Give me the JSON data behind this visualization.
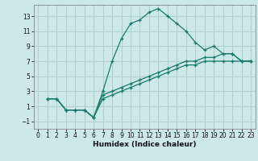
{
  "xlabel": "Humidex (Indice chaleur)",
  "bg_color": "#cce8e8",
  "grid_color": "#b0d0d0",
  "line_color": "#1a7a6e",
  "xlim": [
    -0.5,
    23.5
  ],
  "ylim": [
    -2.0,
    14.5
  ],
  "xticks": [
    0,
    1,
    2,
    3,
    4,
    5,
    6,
    7,
    8,
    9,
    10,
    11,
    12,
    13,
    14,
    15,
    16,
    17,
    18,
    19,
    20,
    21,
    22,
    23
  ],
  "yticks": [
    -1,
    1,
    3,
    5,
    7,
    9,
    11,
    13
  ],
  "series": [
    {
      "x": [
        1,
        2,
        3,
        4,
        5,
        6,
        7,
        8,
        9,
        10,
        11,
        12,
        13,
        14,
        15,
        16,
        17,
        18,
        19,
        20,
        21,
        22,
        23
      ],
      "y": [
        2,
        2,
        0.5,
        0.5,
        0.5,
        -0.5,
        3,
        7,
        10,
        12,
        12.5,
        13.5,
        14,
        13,
        12,
        11,
        9.5,
        8.5,
        9,
        8,
        8,
        7,
        7
      ]
    },
    {
      "x": [
        1,
        2,
        3,
        4,
        5,
        6,
        7,
        8,
        9,
        10,
        11,
        12,
        13,
        14,
        15,
        16,
        17,
        18,
        19,
        20,
        21,
        22,
        23
      ],
      "y": [
        2,
        2,
        0.5,
        0.5,
        0.5,
        -0.5,
        2.5,
        3,
        3.5,
        4,
        4.5,
        5,
        5.5,
        6,
        6.5,
        7,
        7,
        7.5,
        7.5,
        8,
        8,
        7,
        7
      ]
    },
    {
      "x": [
        1,
        2,
        3,
        4,
        5,
        6,
        7,
        8,
        9,
        10,
        11,
        12,
        13,
        14,
        15,
        16,
        17,
        18,
        19,
        20,
        21,
        22,
        23
      ],
      "y": [
        2,
        2,
        0.5,
        0.5,
        0.5,
        -0.5,
        2.0,
        2.5,
        3.0,
        3.5,
        4.0,
        4.5,
        5.0,
        5.5,
        6.0,
        6.5,
        6.5,
        7.0,
        7.0,
        7.0,
        7.0,
        7.0,
        7.0
      ]
    }
  ]
}
